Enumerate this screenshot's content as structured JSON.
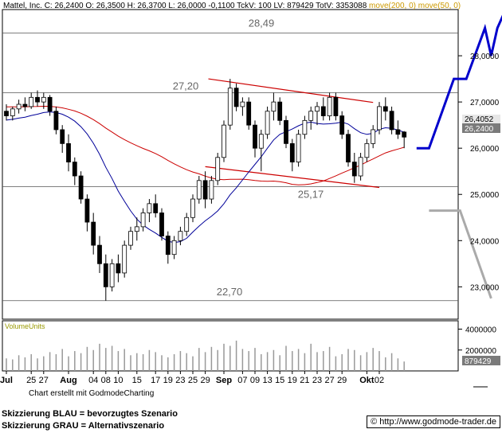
{
  "header": {
    "title": "Mattel, Inc.",
    "ohlc": "C: 26,2400 O: 26,3500 H: 26,3700 L: 26,0000 -0,1100 TckV: 100 LV: 879429 TotV: 3353088",
    "ma200": "move(200, 0)",
    "ma50": "move(50, 0)"
  },
  "price_tags": {
    "blue": "26,4052",
    "last": "26,2400"
  },
  "volume_tag": "879429",
  "volume_label": "VolumeUnits",
  "credit": "Chart erstellt mit GodmodeCharting",
  "legend": {
    "blue": "Skizzierung BLAU = bevorzugtes Szenario",
    "gray": "Skizzierung GRAU = Alternativszenario"
  },
  "url": "© http://www.godmode-trader.de",
  "colors": {
    "up": "#000000",
    "ma200": "#cc0000",
    "ma50": "#000099",
    "scenario_blue": "#0000cc",
    "scenario_gray": "#aaaaaa",
    "channel": "#cc0000"
  },
  "chart_data": {
    "type": "candlestick",
    "ylim": [
      22.3,
      29.0
    ],
    "yticks": [
      23,
      24,
      25,
      26,
      27,
      28
    ],
    "ytick_labels": [
      "23,0000",
      "24,0000",
      "25,0000",
      "26,0000",
      "27,0000",
      "28,0000"
    ],
    "xticks": [
      {
        "i": 0,
        "label": "Jul"
      },
      {
        "i": 4,
        "label": "25"
      },
      {
        "i": 6,
        "label": "27"
      },
      {
        "i": 10,
        "label": "Aug"
      },
      {
        "i": 14,
        "label": "04"
      },
      {
        "i": 16,
        "label": "08"
      },
      {
        "i": 18,
        "label": "10"
      },
      {
        "i": 21,
        "label": "15"
      },
      {
        "i": 24,
        "label": "17"
      },
      {
        "i": 26,
        "label": "19"
      },
      {
        "i": 28,
        "label": "23"
      },
      {
        "i": 30,
        "label": "25"
      },
      {
        "i": 32,
        "label": "29"
      },
      {
        "i": 35,
        "label": "Sep"
      },
      {
        "i": 38,
        "label": "07"
      },
      {
        "i": 40,
        "label": "09"
      },
      {
        "i": 42,
        "label": "13"
      },
      {
        "i": 44,
        "label": "15"
      },
      {
        "i": 46,
        "label": "19"
      },
      {
        "i": 48,
        "label": "21"
      },
      {
        "i": 50,
        "label": "23"
      },
      {
        "i": 52,
        "label": "27"
      },
      {
        "i": 54,
        "label": "29"
      },
      {
        "i": 58,
        "label": "Okt"
      },
      {
        "i": 60,
        "label": "02"
      }
    ],
    "levels": [
      {
        "value": 28.49,
        "label": "28,49"
      },
      {
        "value": 27.2,
        "label": "27,20"
      },
      {
        "value": 25.17,
        "label": "25,17"
      },
      {
        "value": 22.7,
        "label": "22,70"
      }
    ],
    "channel_top": [
      {
        "i": 32.5,
        "y": 27.5
      },
      {
        "i": 59,
        "y": 26.99
      }
    ],
    "channel_bottom": [
      {
        "i": 32,
        "y": 25.6
      },
      {
        "i": 60,
        "y": 25.15
      }
    ],
    "candles": [
      [
        26.8,
        26.95,
        26.6,
        26.7
      ],
      [
        26.7,
        26.9,
        26.6,
        26.85
      ],
      [
        26.85,
        27.05,
        26.75,
        26.95
      ],
      [
        26.95,
        27.1,
        26.8,
        26.9
      ],
      [
        26.9,
        27.2,
        26.85,
        27.1
      ],
      [
        27.1,
        27.25,
        26.9,
        27.0
      ],
      [
        27.0,
        27.2,
        26.85,
        27.1
      ],
      [
        27.1,
        27.15,
        26.7,
        26.8
      ],
      [
        26.8,
        26.9,
        26.3,
        26.4
      ],
      [
        26.4,
        26.5,
        25.9,
        26.1
      ],
      [
        26.1,
        26.3,
        25.5,
        25.7
      ],
      [
        25.7,
        25.8,
        25.2,
        25.4
      ],
      [
        25.4,
        25.5,
        24.8,
        24.9
      ],
      [
        24.9,
        25.0,
        24.2,
        24.4
      ],
      [
        24.4,
        24.6,
        23.7,
        23.9
      ],
      [
        23.9,
        24.1,
        23.3,
        23.5
      ],
      [
        23.5,
        23.7,
        22.7,
        23.0
      ],
      [
        23.0,
        23.6,
        22.9,
        23.5
      ],
      [
        23.5,
        23.7,
        23.1,
        23.3
      ],
      [
        23.3,
        24.0,
        23.2,
        23.9
      ],
      [
        23.9,
        24.3,
        23.8,
        24.2
      ],
      [
        24.2,
        24.5,
        24.0,
        24.3
      ],
      [
        24.3,
        24.7,
        24.2,
        24.6
      ],
      [
        24.6,
        24.9,
        24.4,
        24.8
      ],
      [
        24.8,
        25.0,
        24.5,
        24.6
      ],
      [
        24.6,
        24.7,
        24.0,
        24.1
      ],
      [
        24.1,
        24.2,
        23.5,
        23.7
      ],
      [
        23.7,
        24.1,
        23.6,
        24.0
      ],
      [
        24.0,
        24.3,
        23.9,
        24.2
      ],
      [
        24.2,
        24.6,
        24.1,
        24.5
      ],
      [
        24.5,
        25.0,
        24.4,
        24.9
      ],
      [
        24.9,
        25.4,
        24.8,
        25.3
      ],
      [
        25.3,
        25.5,
        24.7,
        24.9
      ],
      [
        24.9,
        25.4,
        24.8,
        25.3
      ],
      [
        25.3,
        25.9,
        25.2,
        25.8
      ],
      [
        25.8,
        26.6,
        25.7,
        26.5
      ],
      [
        26.5,
        27.5,
        26.4,
        27.3
      ],
      [
        27.3,
        27.4,
        26.8,
        26.9
      ],
      [
        26.9,
        27.1,
        26.7,
        27.0
      ],
      [
        27.0,
        27.1,
        26.4,
        26.5
      ],
      [
        26.5,
        26.6,
        25.8,
        26.0
      ],
      [
        26.0,
        26.4,
        25.5,
        26.3
      ],
      [
        26.3,
        26.9,
        26.2,
        26.8
      ],
      [
        26.8,
        27.2,
        26.6,
        27.0
      ],
      [
        27.0,
        27.1,
        26.5,
        26.6
      ],
      [
        26.6,
        26.7,
        26.0,
        26.1
      ],
      [
        26.1,
        26.2,
        25.5,
        25.7
      ],
      [
        25.7,
        26.4,
        25.6,
        26.3
      ],
      [
        26.3,
        26.7,
        26.2,
        26.6
      ],
      [
        26.6,
        26.9,
        26.4,
        26.8
      ],
      [
        26.8,
        27.0,
        26.5,
        26.9
      ],
      [
        26.9,
        27.1,
        26.6,
        26.7
      ],
      [
        26.7,
        27.2,
        26.6,
        27.1
      ],
      [
        27.1,
        27.2,
        26.6,
        26.7
      ],
      [
        26.7,
        26.8,
        26.2,
        26.3
      ],
      [
        26.3,
        26.4,
        25.6,
        25.7
      ],
      [
        25.7,
        25.9,
        25.25,
        25.4
      ],
      [
        25.4,
        25.9,
        25.3,
        25.8
      ],
      [
        25.8,
        26.2,
        25.7,
        26.1
      ],
      [
        26.1,
        26.5,
        26.0,
        26.4
      ],
      [
        26.4,
        27.0,
        26.3,
        26.9
      ],
      [
        26.9,
        27.1,
        26.6,
        26.8
      ],
      [
        26.8,
        26.9,
        26.3,
        26.4
      ],
      [
        26.4,
        26.6,
        26.2,
        26.3
      ],
      [
        26.35,
        26.37,
        26.0,
        26.24
      ]
    ],
    "volume": [
      1.2,
      1.1,
      1.5,
      1.3,
      1.6,
      1.2,
      1.4,
      1.8,
      1.6,
      2.1,
      1.4,
      1.9,
      1.7,
      2.3,
      2.0,
      2.6,
      2.2,
      2.4,
      1.9,
      2.1,
      1.5,
      1.7,
      1.6,
      2.0,
      1.8,
      1.5,
      1.3,
      1.6,
      1.9,
      1.7,
      1.4,
      2.2,
      1.8,
      2.3,
      2.0,
      2.6,
      2.4,
      2.9,
      2.1,
      1.9,
      2.2,
      1.6,
      1.8,
      2.0,
      1.5,
      2.4,
      1.9,
      2.1,
      1.7,
      2.6,
      1.8,
      1.9,
      2.3,
      1.4,
      1.6,
      2.1,
      2.0,
      1.5,
      1.8,
      2.2,
      1.9,
      1.3,
      1.7,
      1.2,
      0.9
    ],
    "volume_ylim": [
      0,
      4.8
    ],
    "volume_ticks": [
      {
        "v": 4.0,
        "label": "4000000"
      },
      {
        "v": 2.0,
        "label": "2000000"
      }
    ],
    "scenario_blue": [
      {
        "i": 66,
        "y": 26.0
      },
      {
        "i": 68,
        "y": 26.0
      },
      {
        "i": 72,
        "y": 27.5
      },
      {
        "i": 74,
        "y": 27.5
      },
      {
        "i": 77,
        "y": 28.6
      },
      {
        "i": 78,
        "y": 28.0
      },
      {
        "i": 79,
        "y": 28.6
      },
      {
        "i": 80,
        "y": 28.9
      }
    ],
    "scenario_gray": [
      {
        "i": 68,
        "y": 24.65
      },
      {
        "i": 73,
        "y": 24.65
      },
      {
        "i": 78,
        "y": 22.75
      }
    ]
  }
}
